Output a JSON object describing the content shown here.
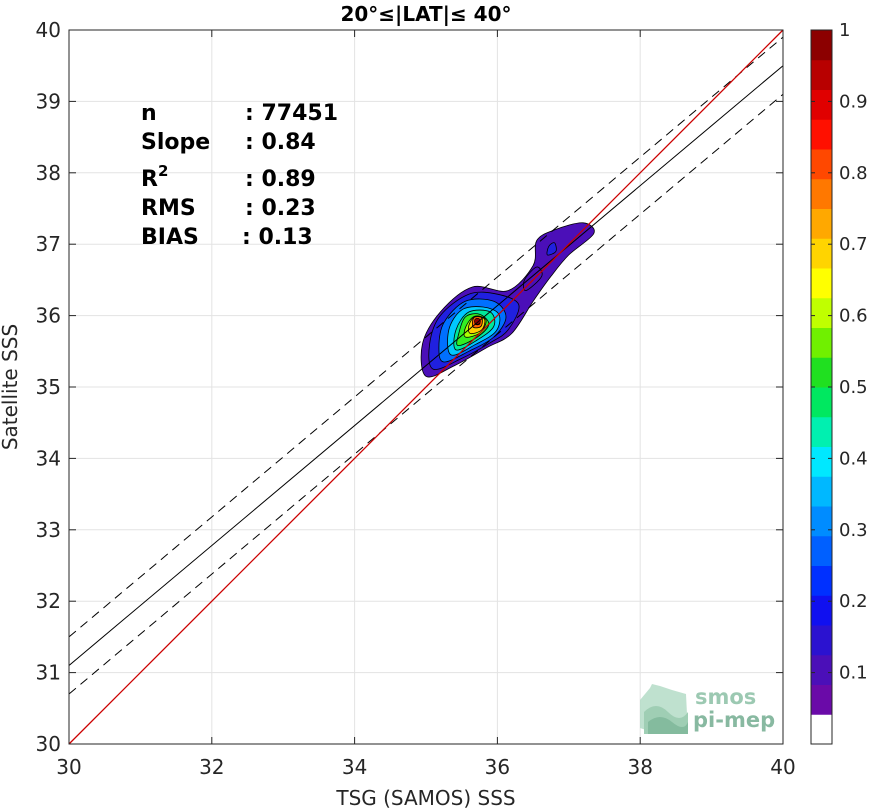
{
  "chart_data": {
    "type": "contour density scatter",
    "title": "20°≤|LAT|≤ 40°",
    "xlabel": "TSG (SAMOS) SSS",
    "ylabel": "Satellite SSS",
    "xlim": [
      30,
      40
    ],
    "ylim": [
      30,
      40
    ],
    "xticks": [
      "30",
      "32",
      "34",
      "36",
      "38",
      "40"
    ],
    "yticks": [
      "30",
      "31",
      "32",
      "33",
      "34",
      "35",
      "36",
      "37",
      "38",
      "39",
      "40"
    ],
    "grid": true,
    "stats": [
      {
        "label": "n",
        "value": ": 77451"
      },
      {
        "label": "Slope",
        "value": ": 0.84"
      },
      {
        "label": "R",
        "sup": "2",
        "value": ": 0.89"
      },
      {
        "label": "RMS",
        "value": ": 0.23"
      },
      {
        "label": "BIAS",
        "value": ": 0.13"
      }
    ],
    "lines": {
      "identity": {
        "color": "#cc0000",
        "x": [
          30,
          40
        ],
        "y": [
          30,
          40
        ]
      },
      "regression": {
        "color": "#000000",
        "x": [
          30,
          40
        ],
        "y": [
          31.1,
          39.5
        ]
      },
      "upper_bound": {
        "color": "#000000",
        "dash": true,
        "x": [
          30,
          40
        ],
        "y": [
          31.5,
          39.9
        ]
      },
      "lower_bound": {
        "color": "#000000",
        "dash": true,
        "x": [
          30,
          40
        ],
        "y": [
          30.7,
          39.1
        ]
      }
    },
    "density_peak": {
      "x": 35.72,
      "y": 35.92
    },
    "contours": [
      {
        "level": 0.05,
        "color": "#4b0fb8",
        "points": [
          [
            35.0,
            35.15
          ],
          [
            35.4,
            35.3
          ],
          [
            35.85,
            35.55
          ],
          [
            36.2,
            35.75
          ],
          [
            36.5,
            36.2
          ],
          [
            36.75,
            36.55
          ],
          [
            37.0,
            36.85
          ],
          [
            37.35,
            37.15
          ],
          [
            37.2,
            37.3
          ],
          [
            36.8,
            37.2
          ],
          [
            36.55,
            37.05
          ],
          [
            36.5,
            36.7
          ],
          [
            36.15,
            36.35
          ],
          [
            35.65,
            36.4
          ],
          [
            35.2,
            36.05
          ],
          [
            34.95,
            35.6
          ]
        ]
      },
      {
        "level": 0.1,
        "color": "#2020e0",
        "points": [
          [
            35.1,
            35.25
          ],
          [
            35.5,
            35.4
          ],
          [
            35.9,
            35.62
          ],
          [
            36.15,
            35.8
          ],
          [
            36.3,
            36.15
          ],
          [
            36.0,
            36.3
          ],
          [
            35.6,
            36.3
          ],
          [
            35.2,
            36.0
          ],
          [
            35.05,
            35.6
          ]
        ]
      },
      {
        "level": 0.2,
        "color": "#0070ff",
        "points": [
          [
            35.25,
            35.35
          ],
          [
            35.6,
            35.5
          ],
          [
            35.95,
            35.7
          ],
          [
            36.12,
            35.98
          ],
          [
            35.95,
            36.2
          ],
          [
            35.55,
            36.2
          ],
          [
            35.25,
            35.9
          ],
          [
            35.18,
            35.55
          ]
        ]
      },
      {
        "level": 0.3,
        "color": "#00c8ff",
        "points": [
          [
            35.35,
            35.45
          ],
          [
            35.7,
            35.6
          ],
          [
            35.98,
            35.78
          ],
          [
            36.02,
            36.02
          ],
          [
            35.8,
            36.12
          ],
          [
            35.5,
            36.08
          ],
          [
            35.32,
            35.8
          ]
        ]
      },
      {
        "level": 0.4,
        "color": "#00e89a",
        "points": [
          [
            35.42,
            35.52
          ],
          [
            35.72,
            35.66
          ],
          [
            35.95,
            35.85
          ],
          [
            35.9,
            36.05
          ],
          [
            35.6,
            36.05
          ],
          [
            35.42,
            35.8
          ]
        ]
      },
      {
        "level": 0.5,
        "color": "#33ee22",
        "points": [
          [
            35.45,
            35.58
          ],
          [
            35.72,
            35.7
          ],
          [
            35.88,
            35.88
          ],
          [
            35.75,
            36.02
          ],
          [
            35.55,
            35.98
          ],
          [
            35.46,
            35.75
          ]
        ]
      },
      {
        "level": 0.6,
        "color": "#aaff00",
        "points": [
          [
            35.55,
            35.7
          ],
          [
            35.76,
            35.76
          ],
          [
            35.84,
            35.94
          ],
          [
            35.68,
            35.99
          ],
          [
            35.56,
            35.85
          ]
        ]
      },
      {
        "level": 0.7,
        "color": "#ffd000",
        "points": [
          [
            35.62,
            35.75
          ],
          [
            35.78,
            35.8
          ],
          [
            35.82,
            35.95
          ],
          [
            35.68,
            35.98
          ],
          [
            35.6,
            35.86
          ]
        ]
      },
      {
        "level": 0.8,
        "color": "#ff6600",
        "points": [
          [
            35.66,
            35.84
          ],
          [
            35.77,
            35.85
          ],
          [
            35.78,
            35.97
          ],
          [
            35.67,
            35.97
          ]
        ]
      },
      {
        "level": 0.9,
        "color": "#e60000",
        "points": [
          [
            35.69,
            35.88
          ],
          [
            35.75,
            35.88
          ],
          [
            35.75,
            35.95
          ],
          [
            35.69,
            35.95
          ]
        ]
      }
    ],
    "secondary_blobs": [
      {
        "level": 0.1,
        "color": "#2020e0",
        "points": [
          [
            36.7,
            36.85
          ],
          [
            36.82,
            36.9
          ],
          [
            36.8,
            37.02
          ],
          [
            36.72,
            36.97
          ]
        ]
      },
      {
        "level": 0.05,
        "color": "#4b0fb8",
        "points": [
          [
            36.4,
            36.35
          ],
          [
            36.62,
            36.55
          ],
          [
            36.55,
            36.68
          ],
          [
            36.38,
            36.5
          ]
        ]
      }
    ],
    "colorbar": {
      "ticks": [
        "0.1",
        "0.2",
        "0.3",
        "0.4",
        "0.5",
        "0.6",
        "0.7",
        "0.8",
        "0.9",
        "1"
      ],
      "range": [
        0,
        1
      ],
      "colors": [
        "#ffffff",
        "#6a0aa8",
        "#4b0fb8",
        "#2b12d0",
        "#1010f0",
        "#0030ff",
        "#0060ff",
        "#008cff",
        "#00b8ff",
        "#00e8ff",
        "#00f0b0",
        "#00e860",
        "#20e020",
        "#70f000",
        "#c0ff00",
        "#ffff00",
        "#ffd400",
        "#ffa800",
        "#ff7800",
        "#ff4800",
        "#ff1000",
        "#e00000",
        "#b80000",
        "#8c0000"
      ]
    },
    "logo_text": [
      "smos",
      "pi-mep"
    ]
  }
}
